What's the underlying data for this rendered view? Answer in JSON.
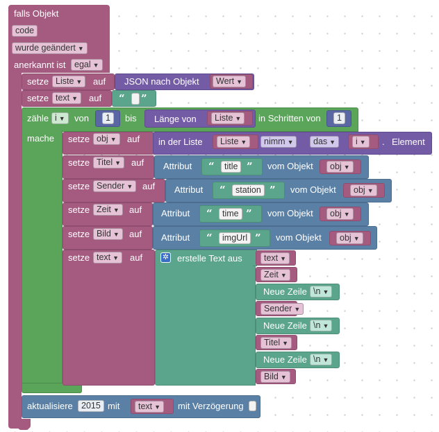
{
  "event": {
    "title": "falls Objekt",
    "object_field": "code",
    "trigger_dropdown": "wurde geändert",
    "ack_label": "anerkannt ist",
    "ack_dropdown": "egal"
  },
  "set_list": {
    "setze": "setze",
    "var": "Liste",
    "auf": "auf",
    "json_label": "JSON nach Objekt",
    "json_var": "Wert"
  },
  "set_text": {
    "setze": "setze",
    "var": "text",
    "auf": "auf",
    "quote_open": "“",
    "quote_close": "”"
  },
  "loop": {
    "count_label": "zähle",
    "var": "i",
    "from_label": "von",
    "from_value": "1",
    "to_label": "bis",
    "length_label": "Länge von",
    "length_var": "Liste",
    "step_label": "in Schritten von",
    "step_value": "1",
    "do_label": "mache"
  },
  "set_obj": {
    "setze": "setze",
    "var": "obj",
    "auf": "auf",
    "in_list": "in der Liste",
    "list_var": "Liste",
    "mode": "nimm",
    "where": "das",
    "index_var": "i",
    "dot": ".",
    "element": "Element"
  },
  "attr_rows": [
    {
      "setze": "setze",
      "var": "Titel",
      "auf": "auf",
      "attr_label": "Attribut",
      "attr": "title",
      "from_label": "vom Objekt",
      "obj": "obj"
    },
    {
      "setze": "setze",
      "var": "Sender",
      "auf": "auf",
      "attr_label": "Attribut",
      "attr": "station",
      "from_label": "vom Objekt",
      "obj": "obj"
    },
    {
      "setze": "setze",
      "var": "Zeit",
      "auf": "auf",
      "attr_label": "Attribut",
      "attr": "time",
      "from_label": "vom Objekt",
      "obj": "obj"
    },
    {
      "setze": "setze",
      "var": "Bild",
      "auf": "auf",
      "attr_label": "Attribut",
      "attr": "imgUrl",
      "from_label": "vom Objekt",
      "obj": "obj"
    }
  ],
  "set_text2": {
    "setze": "setze",
    "var": "text",
    "auf": "auf",
    "create_label": "erstelle Text aus",
    "items": [
      "text",
      "Zeit",
      "Neue Zeile",
      "Sender",
      "Neue Zeile",
      "Titel",
      "Neue Zeile",
      "Bild"
    ],
    "newline_value": "\\n"
  },
  "update": {
    "label": "aktualisiere",
    "id": "2015",
    "with_label": "mit",
    "var": "text",
    "delay_label": "mit Verzögerung"
  },
  "colors": {
    "event": "#a55b80",
    "variables": "#a55b80",
    "lists": "#745ba5",
    "loops": "#5ba55b",
    "text": "#5ba58c",
    "objects": "#5b80a5"
  }
}
